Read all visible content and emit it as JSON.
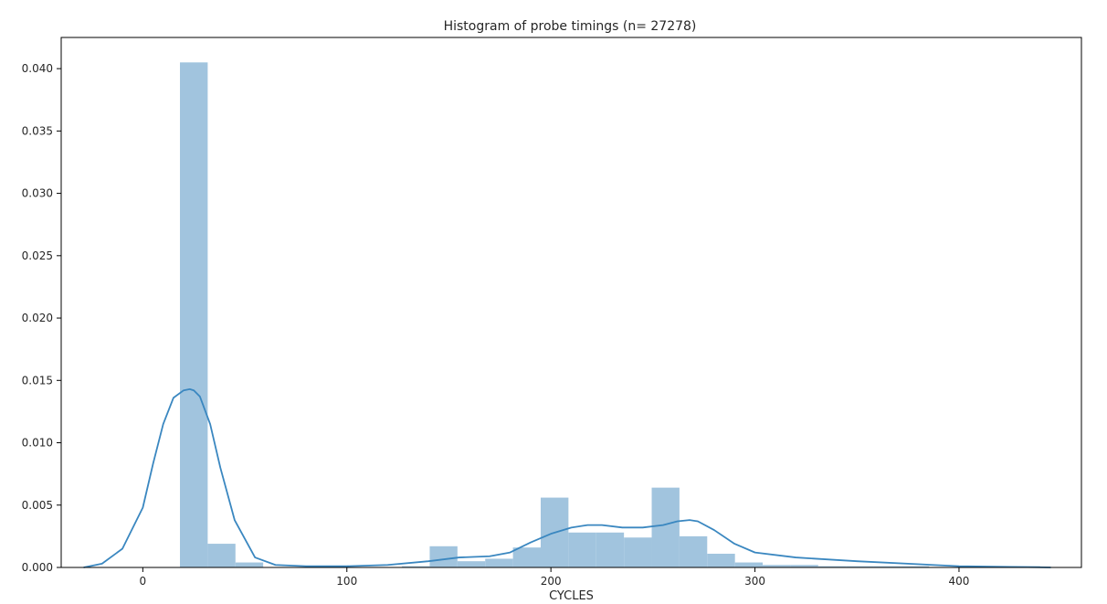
{
  "chart_data": {
    "type": "bar",
    "title": "Histogram of probe timings (n= 27278)",
    "xlabel": "CYCLES",
    "ylabel": "",
    "xlim": [
      -40,
      460
    ],
    "ylim": [
      0,
      0.0425
    ],
    "xticks": [
      0,
      100,
      200,
      300,
      400
    ],
    "yticks": [
      0.0,
      0.005,
      0.01,
      0.015,
      0.02,
      0.025,
      0.03,
      0.035,
      0.04
    ],
    "ytick_labels": [
      "0.000",
      "0.005",
      "0.010",
      "0.015",
      "0.020",
      "0.025",
      "0.030",
      "0.035",
      "0.040"
    ],
    "grid": false,
    "series": [
      {
        "kind": "histogram",
        "bin_edges": [
          18.2,
          31.8,
          45.4,
          59.0,
          72.6,
          86.2,
          99.8,
          113.4,
          127.0,
          140.6,
          154.2,
          167.8,
          181.4,
          195.0,
          208.6,
          222.2,
          235.8,
          249.4,
          263.0,
          276.6,
          290.2,
          303.8,
          317.4,
          331.0,
          344.6,
          358.2,
          371.8,
          385.4,
          399.0,
          412.6,
          426.2,
          439.8
        ],
        "values": [
          0.0405,
          0.0019,
          0.0004,
          0.0,
          0.0,
          0.0,
          0.0,
          0.0,
          0.0001,
          0.0017,
          0.0005,
          0.0007,
          0.0016,
          0.0056,
          0.0028,
          0.0028,
          0.0024,
          0.0064,
          0.0025,
          0.0011,
          0.0004,
          0.0002,
          0.0002,
          0.0001,
          0.0001,
          0.0001,
          0.0001,
          0.0,
          0.0001,
          0.0,
          0.0001
        ],
        "color": "#a1c4de"
      },
      {
        "kind": "kde",
        "x": [
          -29,
          -20,
          -10,
          0,
          5,
          10,
          15,
          20,
          23,
          25,
          28,
          33,
          38,
          45,
          55,
          65,
          80,
          100,
          120,
          140,
          155,
          170,
          180,
          190,
          200,
          210,
          218,
          225,
          235,
          245,
          255,
          262,
          268,
          272,
          280,
          290,
          300,
          320,
          350,
          400,
          445
        ],
        "y": [
          0.0,
          0.0003,
          0.0015,
          0.0048,
          0.0083,
          0.0115,
          0.0136,
          0.0142,
          0.0143,
          0.0142,
          0.0137,
          0.0115,
          0.008,
          0.0038,
          0.0008,
          0.0002,
          0.0001,
          0.0001,
          0.0002,
          0.0005,
          0.0008,
          0.0009,
          0.0012,
          0.002,
          0.0027,
          0.0032,
          0.0034,
          0.0034,
          0.0032,
          0.0032,
          0.0034,
          0.0037,
          0.0038,
          0.0037,
          0.003,
          0.0019,
          0.0012,
          0.0008,
          0.0005,
          0.0001,
          0.0
        ],
        "color": "#3a87c0"
      }
    ]
  }
}
